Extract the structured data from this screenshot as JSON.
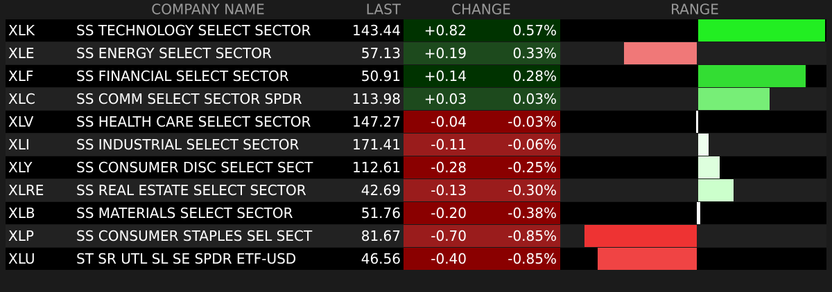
{
  "header": {
    "company_name": "COMPANY NAME",
    "last": "LAST",
    "change": "CHANGE",
    "range": "RANGE"
  },
  "range_lim": [
    -195,
    185
  ],
  "rows": [
    {
      "symbol": "XLK",
      "name": "SS TECHNOLOGY SELECT SECTOR",
      "last": "143.44",
      "change": "+0.82",
      "pct": "0.57%",
      "range": [
        2,
        185
      ],
      "range_color": "#22ee22"
    },
    {
      "symbol": "XLE",
      "name": "SS ENERGY SELECT SECTOR",
      "last": "57.13",
      "change": "+0.19",
      "pct": "0.33%",
      "range": [
        -105,
        0
      ],
      "range_color": "#f07878"
    },
    {
      "symbol": "XLF",
      "name": "SS FINANCIAL SELECT SECTOR",
      "last": "50.91",
      "change": "+0.14",
      "pct": "0.28%",
      "range": [
        2,
        157
      ],
      "range_color": "#33dd33"
    },
    {
      "symbol": "XLC",
      "name": "SS COMM SELECT SECTOR SPDR",
      "last": "113.98",
      "change": "+0.03",
      "pct": "0.03%",
      "range": [
        2,
        105
      ],
      "range_color": "#77ee77"
    },
    {
      "symbol": "XLV",
      "name": "SS HEALTH CARE SELECT SECTOR",
      "last": "147.27",
      "change": "-0.04",
      "pct": "-0.03%",
      "range": [
        -1,
        2
      ],
      "range_color": "#ffffff"
    },
    {
      "symbol": "XLI",
      "name": "SS INDUSTRIAL SELECT SECTOR",
      "last": "171.41",
      "change": "-0.11",
      "pct": "-0.06%",
      "range": [
        2,
        17
      ],
      "range_color": "#eeffee"
    },
    {
      "symbol": "XLY",
      "name": "SS CONSUMER DISC SELECT SECT",
      "last": "112.61",
      "change": "-0.28",
      "pct": "-0.25%",
      "range": [
        2,
        33
      ],
      "range_color": "#ddffdd"
    },
    {
      "symbol": "XLRE",
      "name": "SS REAL ESTATE SELECT SECTOR",
      "last": "42.69",
      "change": "-0.13",
      "pct": "-0.30%",
      "range": [
        2,
        53
      ],
      "range_color": "#ccffcc"
    },
    {
      "symbol": "XLB",
      "name": "SS MATERIALS SELECT SECTOR",
      "last": "51.76",
      "change": "-0.20",
      "pct": "-0.38%",
      "range": [
        0,
        5
      ],
      "range_color": "#ffffff"
    },
    {
      "symbol": "XLP",
      "name": "SS CONSUMER STAPLES SEL SECT",
      "last": "81.67",
      "change": "-0.70",
      "pct": "-0.85%",
      "range": [
        -162,
        0
      ],
      "range_color": "#ee3333"
    },
    {
      "symbol": "XLU",
      "name": "ST SR UTL SL SE SPDR ETF-USD",
      "last": "46.56",
      "change": "-0.40",
      "pct": "-0.85%",
      "range": [
        -143,
        0
      ],
      "range_color": "#f04444"
    }
  ]
}
